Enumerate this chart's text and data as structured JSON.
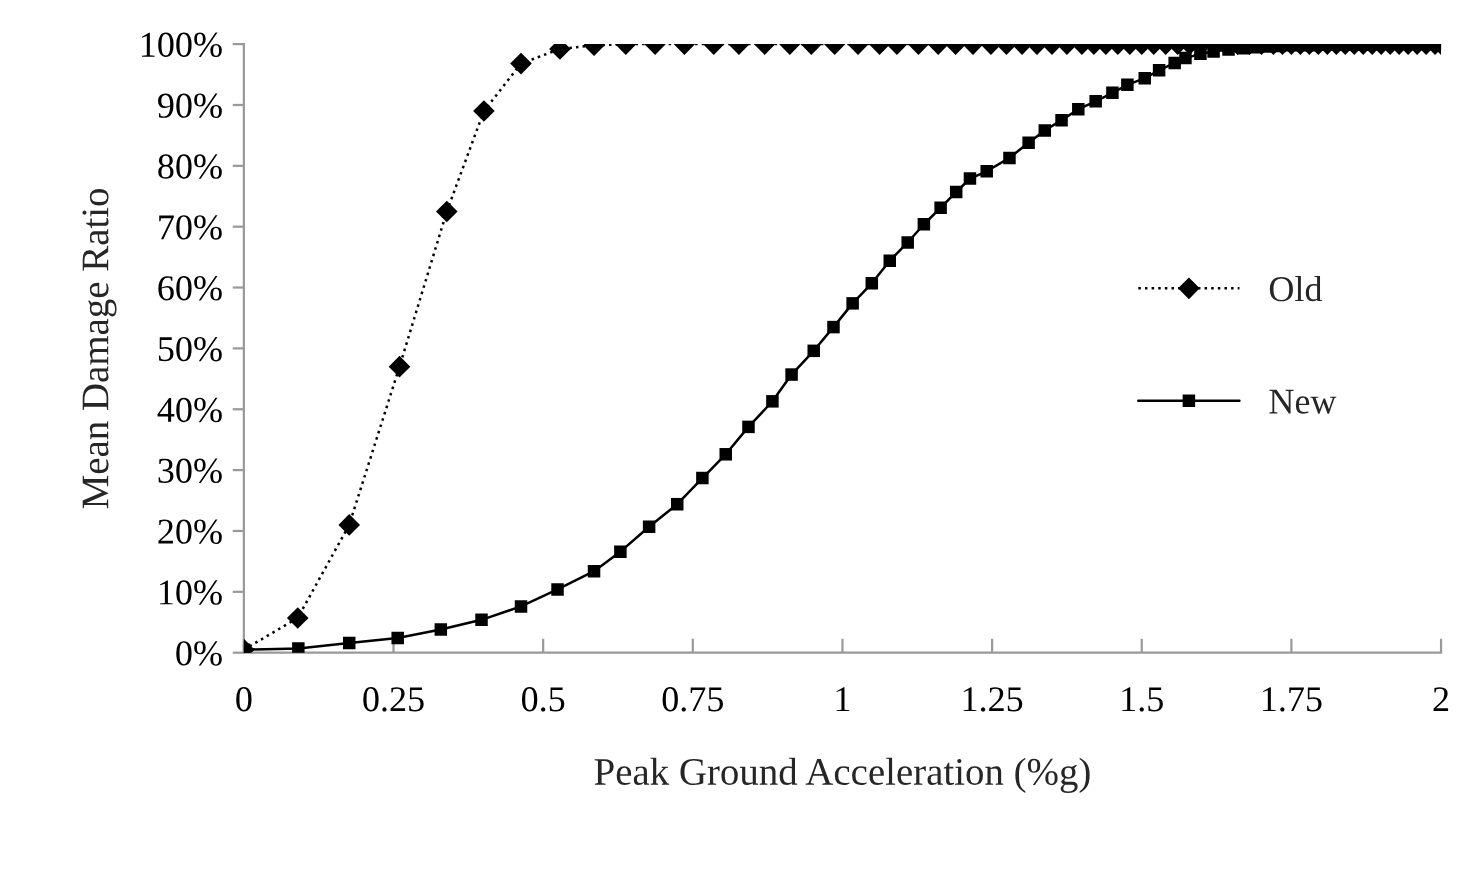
{
  "chart_data": {
    "type": "line",
    "xlabel": "Peak Ground Acceleration (%g)",
    "ylabel": "Mean Damage Ratio",
    "xlim": [
      0,
      2
    ],
    "xticks": [
      0,
      0.25,
      0.5,
      0.75,
      1,
      1.25,
      1.5,
      1.75,
      2
    ],
    "ylim": [
      0,
      100
    ],
    "yticks": [
      {
        "value": 0,
        "label": "0%"
      },
      {
        "value": 10,
        "label": "10%"
      },
      {
        "value": 20,
        "label": "20%"
      },
      {
        "value": 30,
        "label": "30%"
      },
      {
        "value": 40,
        "label": "40%"
      },
      {
        "value": 50,
        "label": "50%"
      },
      {
        "value": 60,
        "label": "60%"
      },
      {
        "value": 70,
        "label": "70%"
      },
      {
        "value": 80,
        "label": "80%"
      },
      {
        "value": 90,
        "label": "90%"
      },
      {
        "value": 100,
        "label": "100%"
      }
    ],
    "grid": false,
    "legend": "right",
    "series": [
      {
        "name": "Old",
        "color": "#000000",
        "marker": "diamond",
        "line_style": "dotted",
        "x": [
          0,
          0.09,
          0.176,
          0.26,
          0.339,
          0.401,
          0.463,
          0.528,
          0.585,
          0.638,
          0.687,
          0.736,
          0.785,
          0.827,
          0.87,
          0.912,
          0.948,
          0.987,
          1.026,
          1.062,
          1.091,
          1.127,
          1.16,
          1.189,
          1.218,
          1.248,
          1.274,
          1.3,
          1.325,
          1.35,
          1.375,
          1.4,
          1.42,
          1.44,
          1.46,
          1.48,
          1.5,
          1.52,
          1.54,
          1.56,
          1.58,
          1.6,
          1.62,
          1.64,
          1.66,
          1.68,
          1.7,
          1.72,
          1.735,
          1.75,
          1.765,
          1.78,
          1.795,
          1.81,
          1.825,
          1.84,
          1.855,
          1.87,
          1.885,
          1.9,
          1.915,
          1.93,
          1.945,
          1.96,
          1.975,
          1.99,
          2.0
        ],
        "values": [
          0.5,
          5.7,
          21,
          47,
          72.5,
          89,
          96.8,
          99.2,
          99.8,
          100,
          100,
          100,
          100,
          100,
          100,
          100,
          100,
          100,
          100,
          100,
          100,
          100,
          100,
          100,
          100,
          100,
          100,
          100,
          100,
          100,
          100,
          100,
          100,
          100,
          100,
          100,
          100,
          100,
          100,
          100,
          100,
          100,
          100,
          100,
          100,
          100,
          100,
          100,
          100,
          100,
          100,
          100,
          100,
          100,
          100,
          100,
          100,
          100,
          100,
          100,
          100,
          100,
          100,
          100,
          100,
          100,
          100
        ]
      },
      {
        "name": "New",
        "color": "#000000",
        "marker": "square",
        "line_style": "solid",
        "x": [
          0,
          0.091,
          0.176,
          0.257,
          0.329,
          0.397,
          0.463,
          0.524,
          0.585,
          0.629,
          0.677,
          0.724,
          0.766,
          0.805,
          0.843,
          0.883,
          0.915,
          0.952,
          0.985,
          1.017,
          1.049,
          1.079,
          1.109,
          1.136,
          1.164,
          1.19,
          1.213,
          1.241,
          1.279,
          1.311,
          1.338,
          1.366,
          1.394,
          1.423,
          1.451,
          1.476,
          1.505,
          1.529,
          1.555,
          1.573,
          1.598,
          1.62,
          1.645,
          1.67,
          1.69,
          1.71,
          1.73,
          1.75,
          1.77,
          1.79,
          1.81,
          1.83,
          1.85,
          1.87,
          1.89,
          1.91,
          1.93,
          1.95,
          1.97,
          1.99,
          2.0
        ],
        "values": [
          0.5,
          0.7,
          1.6,
          2.4,
          3.8,
          5.4,
          7.6,
          10.4,
          13.4,
          16.6,
          20.7,
          24.4,
          28.7,
          32.6,
          37.1,
          41.3,
          45.7,
          49.6,
          53.5,
          57.4,
          60.7,
          64.4,
          67.4,
          70.4,
          73.1,
          75.7,
          77.9,
          79.1,
          81.3,
          83.8,
          85.8,
          87.5,
          89.3,
          90.6,
          92,
          93.3,
          94.4,
          95.7,
          96.9,
          97.7,
          98.4,
          98.8,
          99.1,
          99.3,
          99.5,
          99.6,
          99.7,
          99.8,
          99.8,
          99.8,
          99.9,
          99.9,
          99.9,
          99.9,
          100,
          100,
          100,
          100,
          100,
          100,
          100
        ]
      }
    ]
  }
}
